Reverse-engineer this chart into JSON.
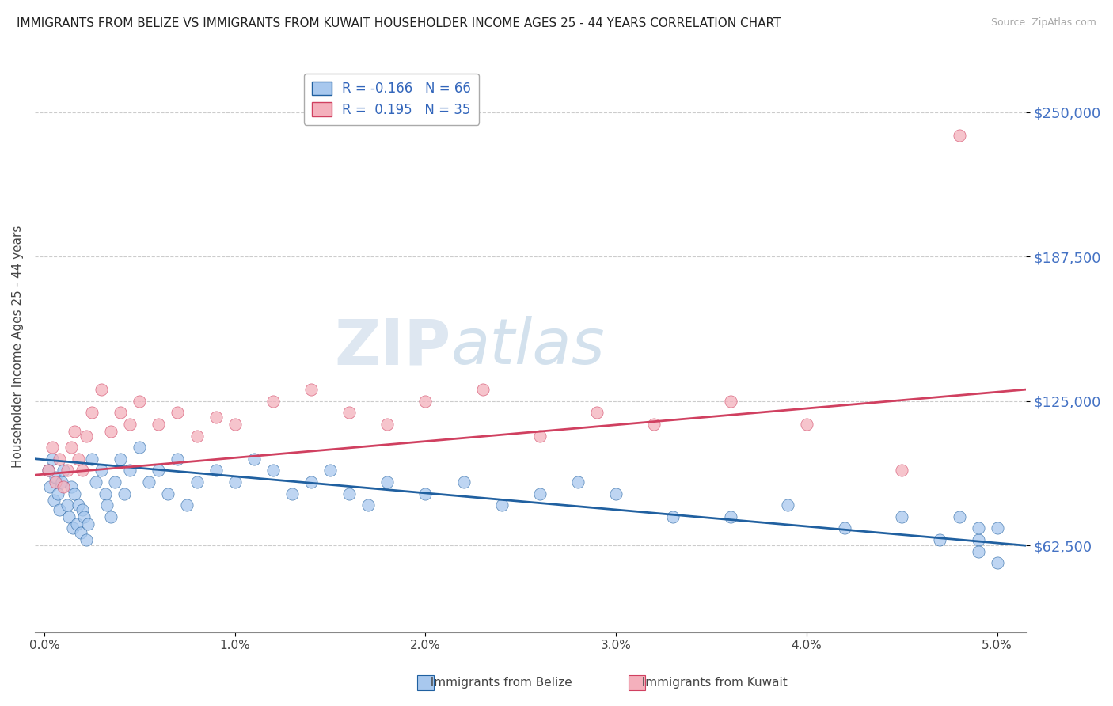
{
  "title": "IMMIGRANTS FROM BELIZE VS IMMIGRANTS FROM KUWAIT HOUSEHOLDER INCOME AGES 25 - 44 YEARS CORRELATION CHART",
  "source": "Source: ZipAtlas.com",
  "ylabel": "Householder Income Ages 25 - 44 years",
  "ytick_labels": [
    "$62,500",
    "$125,000",
    "$187,500",
    "$250,000"
  ],
  "ytick_values": [
    62500,
    125000,
    187500,
    250000
  ],
  "ymin": 25000,
  "ymax": 272000,
  "xmin": -0.0005,
  "xmax": 0.0515,
  "belize_color": "#a8c8ee",
  "kuwait_color": "#f4b0bc",
  "belize_line_color": "#2060a0",
  "kuwait_line_color": "#d04060",
  "belize_R": -0.166,
  "belize_N": 66,
  "kuwait_R": 0.195,
  "kuwait_N": 35,
  "watermark_zip": "ZIP",
  "watermark_atlas": "atlas",
  "belize_x": [
    0.0002,
    0.0003,
    0.0004,
    0.0005,
    0.0006,
    0.0007,
    0.0008,
    0.0009,
    0.001,
    0.0012,
    0.0013,
    0.0014,
    0.0015,
    0.0016,
    0.0017,
    0.0018,
    0.0019,
    0.002,
    0.0021,
    0.0022,
    0.0023,
    0.0025,
    0.0027,
    0.003,
    0.0032,
    0.0033,
    0.0035,
    0.0037,
    0.004,
    0.0042,
    0.0045,
    0.005,
    0.0055,
    0.006,
    0.0065,
    0.007,
    0.0075,
    0.008,
    0.009,
    0.01,
    0.011,
    0.012,
    0.013,
    0.014,
    0.015,
    0.016,
    0.017,
    0.018,
    0.02,
    0.022,
    0.024,
    0.026,
    0.028,
    0.03,
    0.033,
    0.036,
    0.039,
    0.042,
    0.045,
    0.047,
    0.048,
    0.049,
    0.049,
    0.049,
    0.05,
    0.05
  ],
  "belize_y": [
    95000,
    88000,
    100000,
    82000,
    92000,
    85000,
    78000,
    90000,
    95000,
    80000,
    75000,
    88000,
    70000,
    85000,
    72000,
    80000,
    68000,
    78000,
    75000,
    65000,
    72000,
    100000,
    90000,
    95000,
    85000,
    80000,
    75000,
    90000,
    100000,
    85000,
    95000,
    105000,
    90000,
    95000,
    85000,
    100000,
    80000,
    90000,
    95000,
    90000,
    100000,
    95000,
    85000,
    90000,
    95000,
    85000,
    80000,
    90000,
    85000,
    90000,
    80000,
    85000,
    90000,
    85000,
    75000,
    75000,
    80000,
    70000,
    75000,
    65000,
    75000,
    65000,
    70000,
    60000,
    70000,
    55000
  ],
  "kuwait_x": [
    0.0002,
    0.0004,
    0.0006,
    0.0008,
    0.001,
    0.0012,
    0.0014,
    0.0016,
    0.0018,
    0.002,
    0.0022,
    0.0025,
    0.003,
    0.0035,
    0.004,
    0.0045,
    0.005,
    0.006,
    0.007,
    0.008,
    0.009,
    0.01,
    0.012,
    0.014,
    0.016,
    0.018,
    0.02,
    0.023,
    0.026,
    0.029,
    0.032,
    0.036,
    0.04,
    0.045,
    0.048
  ],
  "kuwait_y": [
    95000,
    105000,
    90000,
    100000,
    88000,
    95000,
    105000,
    112000,
    100000,
    95000,
    110000,
    120000,
    130000,
    112000,
    120000,
    115000,
    125000,
    115000,
    120000,
    110000,
    118000,
    115000,
    125000,
    130000,
    120000,
    115000,
    125000,
    130000,
    110000,
    120000,
    115000,
    125000,
    115000,
    95000,
    240000
  ]
}
